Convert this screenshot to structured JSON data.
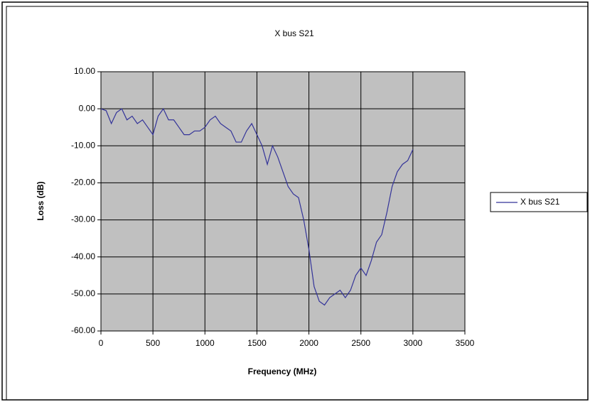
{
  "chart_data": {
    "type": "line",
    "title": "X bus S21",
    "x_label": "Frequency (MHz)",
    "y_label": "Loss (dB)",
    "x": [
      0,
      50,
      100,
      150,
      200,
      250,
      300,
      350,
      400,
      450,
      500,
      550,
      600,
      650,
      700,
      750,
      800,
      850,
      900,
      950,
      1000,
      1050,
      1100,
      1150,
      1200,
      1250,
      1300,
      1350,
      1400,
      1450,
      1500,
      1550,
      1600,
      1650,
      1700,
      1750,
      1800,
      1850,
      1900,
      1950,
      2000,
      2050,
      2100,
      2150,
      2200,
      2250,
      2300,
      2350,
      2400,
      2450,
      2500,
      2550,
      2600,
      2650,
      2700,
      2750,
      2800,
      2850,
      2900,
      2950,
      3000
    ],
    "series": [
      {
        "name": "X bus S21",
        "color": "#333399",
        "values": [
          0,
          -0.5,
          -4,
          -1,
          0,
          -3,
          -2,
          -4,
          -3,
          -5,
          -7,
          -2,
          0,
          -3,
          -3,
          -5,
          -7,
          -7,
          -6,
          -6,
          -5,
          -3,
          -2,
          -4,
          -5,
          -6,
          -9,
          -9,
          -6,
          -4,
          -7,
          -10,
          -15,
          -10,
          -13,
          -17,
          -21,
          -23,
          -24,
          -30,
          -38,
          -48,
          -52,
          -53,
          -51,
          -50,
          -49,
          -51,
          -49,
          -45,
          -43,
          -45,
          -41,
          -36,
          -34,
          -28,
          -21,
          -17,
          -15,
          -14,
          -11
        ]
      }
    ],
    "xlim": [
      0,
      3500
    ],
    "xticks": [
      0,
      500,
      1000,
      1500,
      2000,
      2500,
      3000,
      3500
    ],
    "ylim": [
      -60,
      10
    ],
    "yticks": [
      {
        "value": -60,
        "label": "-60.00"
      },
      {
        "value": -50,
        "label": "-50.00"
      },
      {
        "value": -40,
        "label": "-40.00"
      },
      {
        "value": -30,
        "label": "-30.00"
      },
      {
        "value": -20,
        "label": "-20.00"
      },
      {
        "value": -10,
        "label": "-10.00"
      },
      {
        "value": 0,
        "label": "0.00"
      },
      {
        "value": 10,
        "label": "10.00"
      }
    ],
    "grid": true,
    "plot_background": "#c0c0c0",
    "legend": "right"
  }
}
